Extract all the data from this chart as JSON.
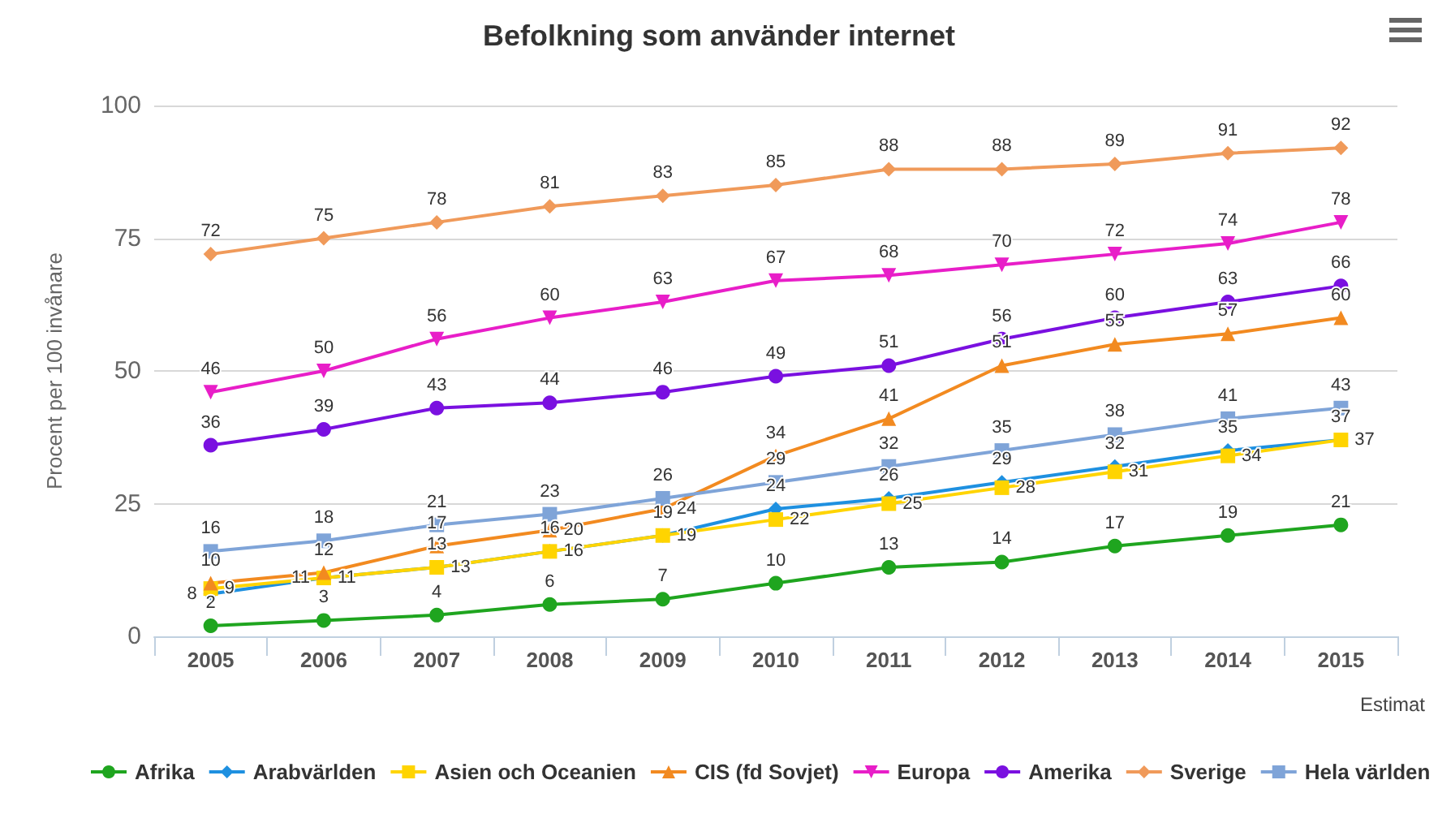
{
  "chart_data": {
    "type": "line",
    "title": "Befolkning som använder internet",
    "ylabel": "Procent per 100 invånare",
    "categories": [
      "2005",
      "2006",
      "2007",
      "2008",
      "2009",
      "2010",
      "2011",
      "2012",
      "2013",
      "2014",
      "2015"
    ],
    "annotations": [
      "Estimat"
    ],
    "ylim": [
      0,
      100
    ],
    "yticks": [
      0,
      25,
      50,
      75,
      100
    ],
    "grid": "y",
    "legend": "bottom",
    "data_labels": true,
    "series": [
      {
        "name": "Afrika",
        "color": "#1fa51f",
        "marker": "circle",
        "values": [
          2,
          3,
          4,
          6,
          7,
          10,
          13,
          14,
          17,
          19,
          21
        ]
      },
      {
        "name": "Arabvärlden",
        "color": "#1e90e0",
        "marker": "diamond",
        "values": [
          8,
          11,
          13,
          16,
          19,
          24,
          26,
          29,
          32,
          35,
          37
        ]
      },
      {
        "name": "Asien och Oceanien",
        "color": "#ffd400",
        "marker": "square",
        "values": [
          9,
          11,
          13,
          16,
          19,
          22,
          25,
          28,
          31,
          34,
          37
        ]
      },
      {
        "name": "CIS (fd Sovjet)",
        "color": "#f28a20",
        "marker": "triangle",
        "values": [
          10,
          12,
          17,
          20,
          24,
          34,
          41,
          51,
          55,
          57,
          60
        ]
      },
      {
        "name": "Europa",
        "color": "#e81ec8",
        "marker": "triangle-down",
        "values": [
          46,
          50,
          56,
          60,
          63,
          67,
          68,
          70,
          72,
          74,
          78
        ]
      },
      {
        "name": "Amerika",
        "color": "#7a10e0",
        "marker": "circle",
        "values": [
          36,
          39,
          43,
          44,
          46,
          49,
          51,
          56,
          60,
          63,
          66
        ]
      },
      {
        "name": "Sverige",
        "color": "#f09a5a",
        "marker": "diamond",
        "values": [
          72,
          75,
          78,
          81,
          83,
          85,
          88,
          88,
          89,
          91,
          92
        ]
      },
      {
        "name": "Hela världen",
        "color": "#7fa4d8",
        "marker": "square",
        "values": [
          16,
          18,
          21,
          23,
          26,
          29,
          32,
          35,
          38,
          41,
          43
        ]
      }
    ]
  }
}
